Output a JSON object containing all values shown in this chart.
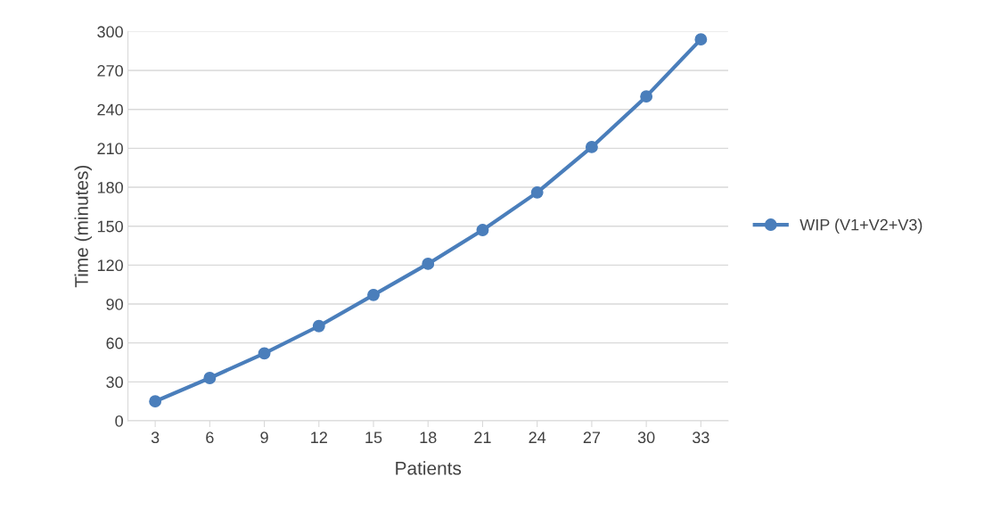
{
  "chart_data": {
    "type": "line",
    "xlabel": "Patients",
    "ylabel": "Time (minutes)",
    "categories": [
      "3",
      "6",
      "9",
      "12",
      "15",
      "18",
      "21",
      "24",
      "27",
      "30",
      "33"
    ],
    "series": [
      {
        "name": "WIP (V1+V2+V3)",
        "color": "#4a7ebb",
        "values": [
          15,
          33,
          52,
          73,
          97,
          121,
          147,
          176,
          211,
          250,
          294
        ]
      }
    ],
    "ylim": [
      0,
      300
    ],
    "yticks": [
      0,
      30,
      60,
      90,
      120,
      150,
      180,
      210,
      240,
      270,
      300
    ],
    "grid": "y",
    "legend": "right",
    "marker": "circle",
    "line_style": "solid"
  }
}
